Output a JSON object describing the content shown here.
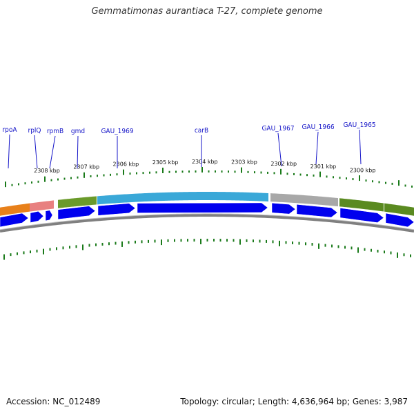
{
  "title": "Gemmatimonas aurantiaca T-27, complete genome",
  "accession": "Accession: NC_012489",
  "summary": "Topology: circular; Length: 4,636,964 bp; Genes: 3,987",
  "colors": {
    "tick": "#1a7a1a",
    "arrow": "#0000ee",
    "gene_label": "#1515c8",
    "backbone": "#808080"
  },
  "kbp_labels": [
    {
      "label": "2308 kbp",
      "kbp": 2308
    },
    {
      "label": "2307 kbp",
      "kbp": 2307
    },
    {
      "label": "2306 kbp",
      "kbp": 2306
    },
    {
      "label": "2305 kbp",
      "kbp": 2305
    },
    {
      "label": "2304 kbp",
      "kbp": 2304
    },
    {
      "label": "2303 kbp",
      "kbp": 2303
    },
    {
      "label": "2302 kbp",
      "kbp": 2302
    },
    {
      "label": "2301 kbp",
      "kbp": 2301
    },
    {
      "label": "2300 kbp",
      "kbp": 2300
    }
  ],
  "gene_labels": [
    {
      "label": "rpoA"
    },
    {
      "label": "rplQ"
    },
    {
      "label": "rpmB"
    },
    {
      "label": "gmd"
    },
    {
      "label": "GAU_1969"
    },
    {
      "label": "carB"
    },
    {
      "label": "GAU_1967"
    },
    {
      "label": "GAU_1966"
    },
    {
      "label": "GAU_1965"
    }
  ],
  "feature_colors": [
    "#e8801a",
    "#e88080",
    "#6a9a2a",
    "#3aa8d8",
    "#a8a8a8",
    "#5a8a20"
  ],
  "arrows_count": 10
}
